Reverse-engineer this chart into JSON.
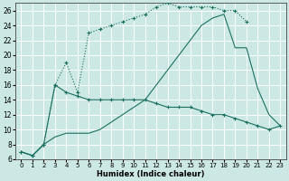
{
  "xlabel": "Humidex (Indice chaleur)",
  "bg_color": "#cce8e4",
  "grid_color": "#ffffff",
  "line_color": "#1a7060",
  "xlim": [
    -0.5,
    23.5
  ],
  "ylim": [
    6,
    27
  ],
  "xticks": [
    0,
    1,
    2,
    3,
    4,
    5,
    6,
    7,
    8,
    9,
    10,
    11,
    12,
    13,
    14,
    15,
    16,
    17,
    18,
    19,
    20,
    21,
    22,
    23
  ],
  "yticks": [
    6,
    8,
    10,
    12,
    14,
    16,
    18,
    20,
    22,
    24,
    26
  ],
  "line1_x": [
    0,
    1,
    2,
    3,
    4,
    5,
    6,
    7,
    8,
    9,
    10,
    11,
    12,
    13,
    14,
    15,
    16,
    17,
    18,
    19,
    20
  ],
  "line1_y": [
    7,
    6.5,
    8,
    16,
    19,
    15,
    23,
    23.5,
    24,
    24.5,
    25,
    25.5,
    26.5,
    27,
    26.5,
    26.5,
    26.5,
    26.5,
    26,
    26,
    24.5
  ],
  "line2_x": [
    0,
    1,
    2,
    3,
    4,
    5,
    6,
    7,
    8,
    9,
    10,
    11,
    12,
    13,
    14,
    15,
    16,
    17,
    18,
    19,
    20,
    21,
    22,
    23
  ],
  "line2_y": [
    7,
    6.5,
    8,
    16,
    15,
    14.5,
    14,
    14,
    14,
    14,
    14,
    14,
    13.5,
    13,
    13,
    13,
    12.5,
    12,
    12,
    11.5,
    11,
    10.5,
    10,
    10.5
  ],
  "line3_x": [
    0,
    1,
    2,
    3,
    4,
    5,
    6,
    7,
    8,
    9,
    10,
    11,
    12,
    13,
    14,
    15,
    16,
    17,
    18,
    19,
    20,
    21,
    22,
    23
  ],
  "line3_y": [
    7,
    6.5,
    8,
    9,
    9.5,
    9.5,
    9.5,
    10,
    11,
    12,
    13,
    14,
    16,
    18,
    20,
    22,
    24,
    25,
    25.5,
    21,
    21,
    15.5,
    12,
    10.5
  ]
}
